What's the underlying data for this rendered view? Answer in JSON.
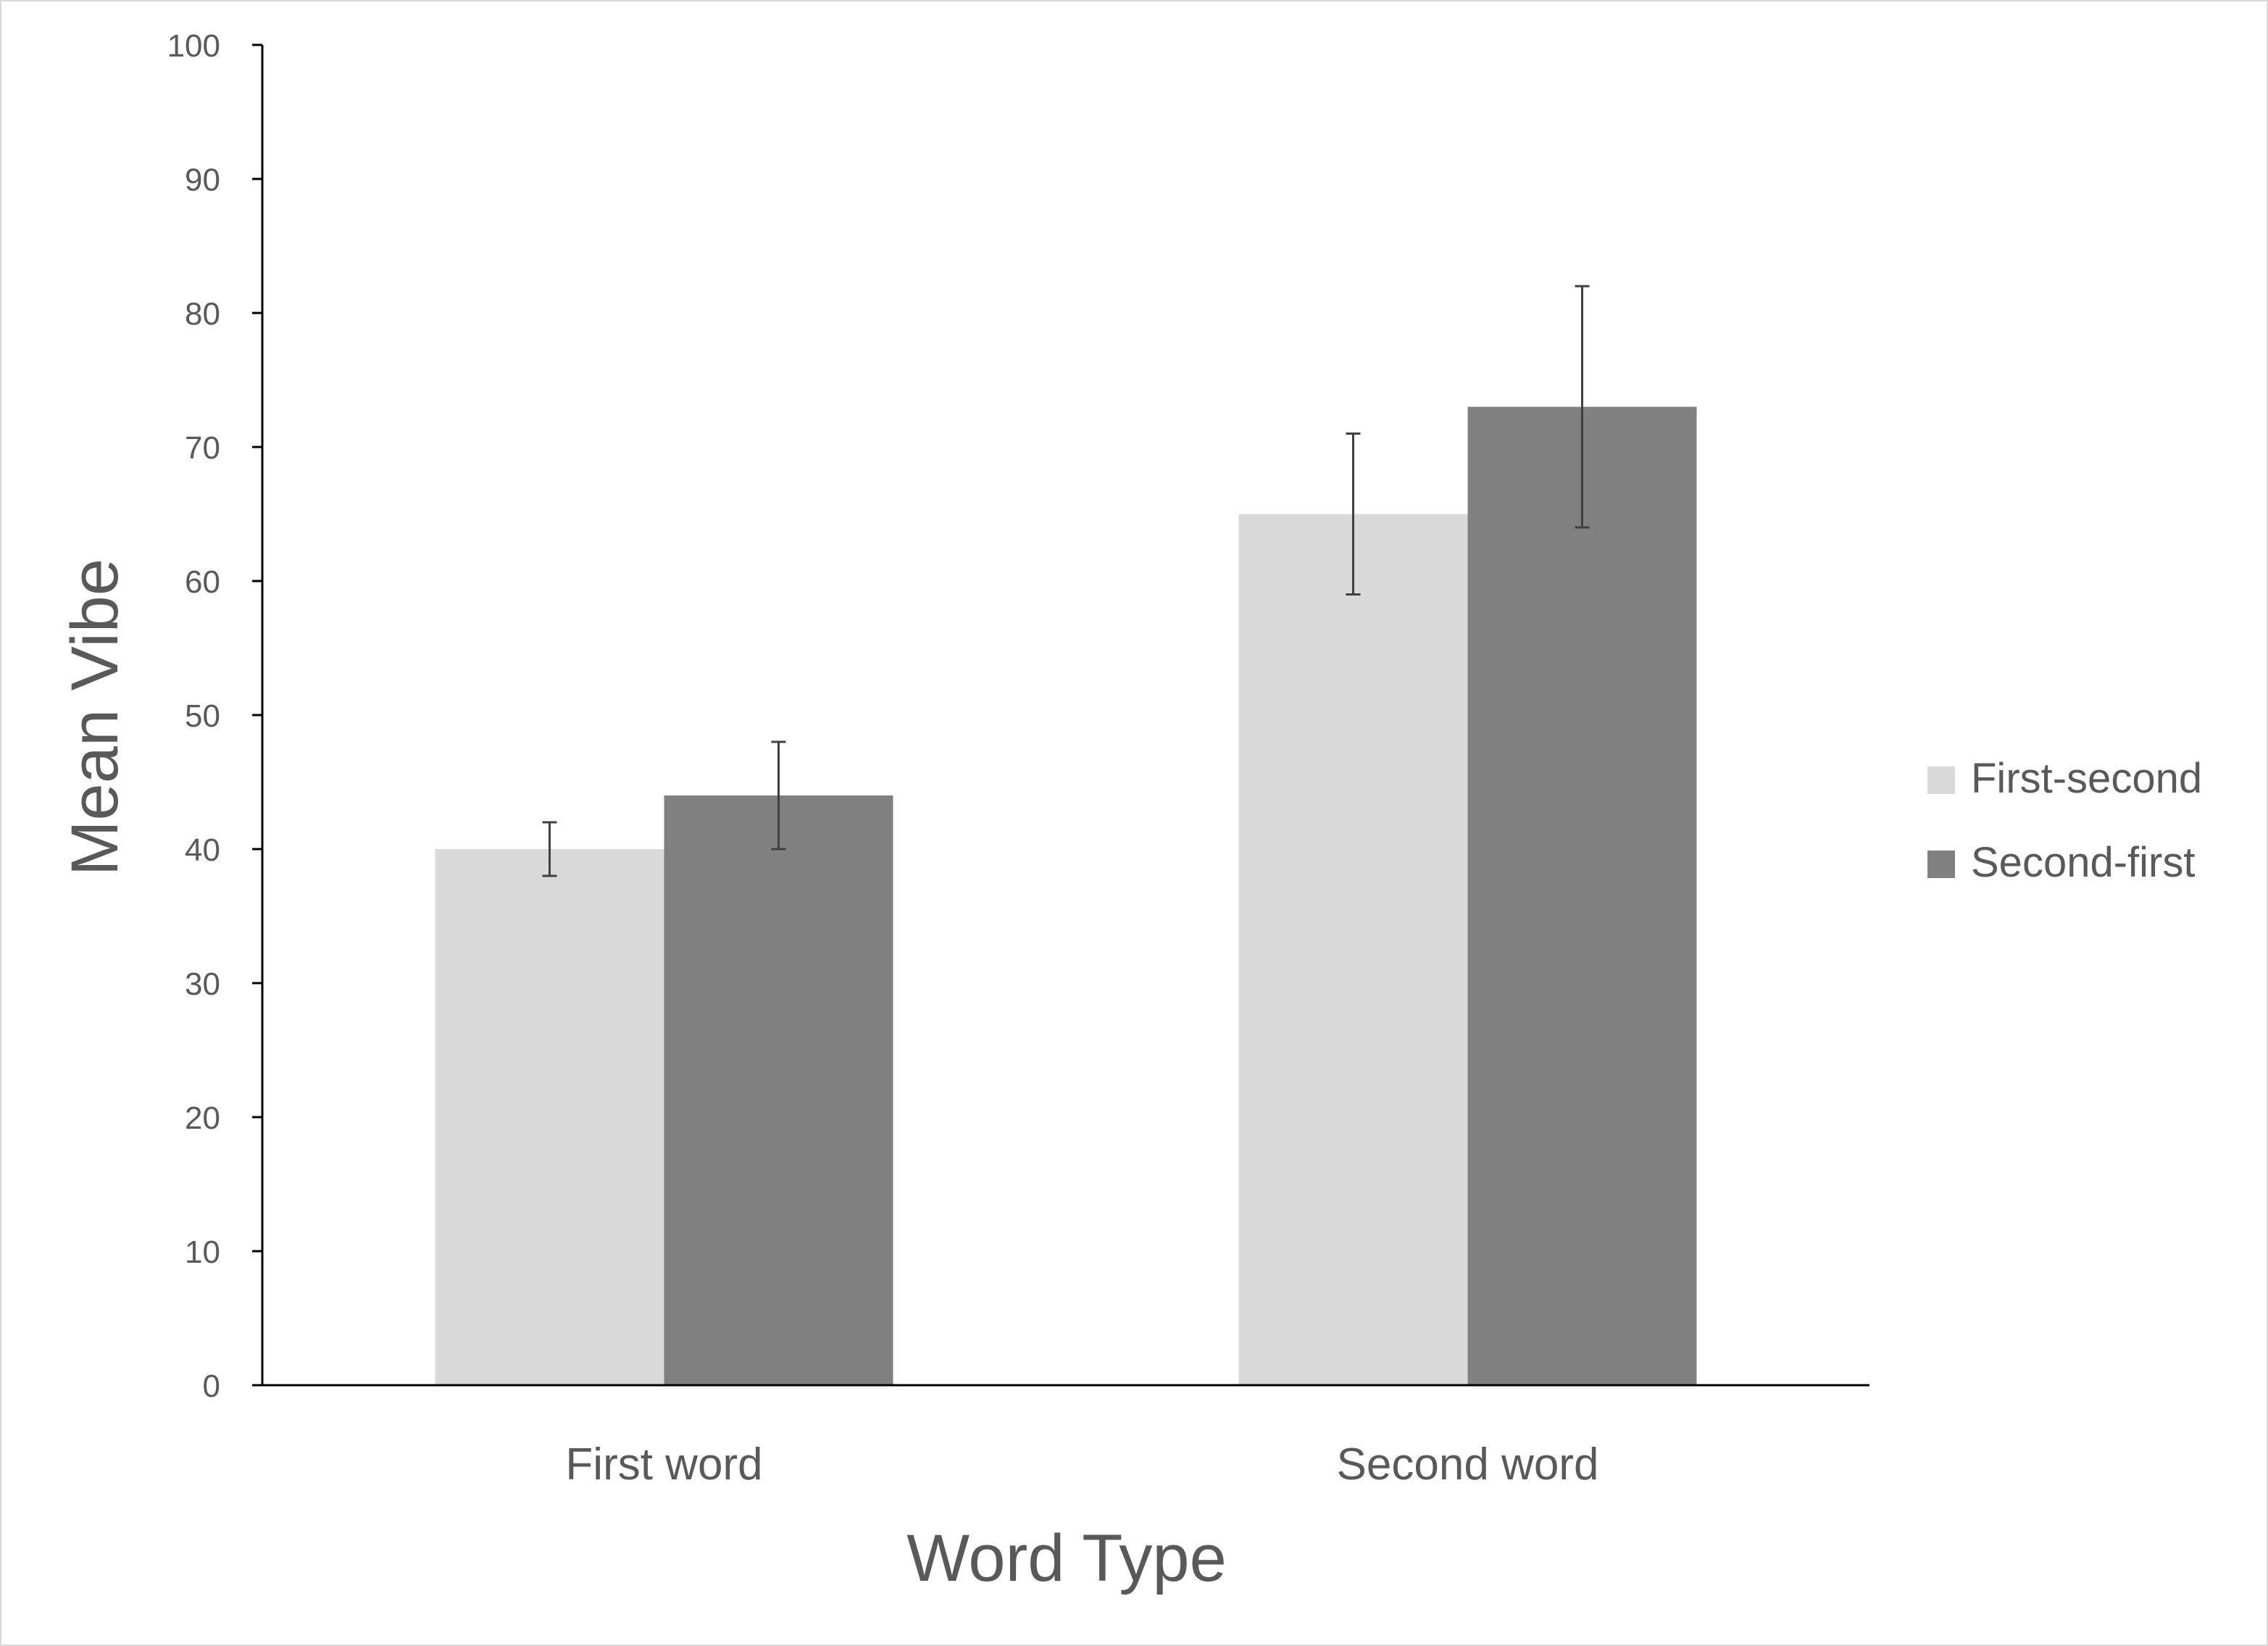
{
  "chart_data": {
    "type": "bar",
    "xlabel": "Word Type",
    "ylabel": "Mean Vibe",
    "ylim": [
      0,
      100
    ],
    "yticks": [
      0,
      10,
      20,
      30,
      40,
      50,
      60,
      70,
      80,
      90,
      100
    ],
    "categories": [
      "First word",
      "Second word"
    ],
    "series": [
      {
        "name": "First-second",
        "values": [
          40,
          65
        ],
        "error_low": [
          38,
          59
        ],
        "error_high": [
          42,
          71
        ],
        "color": "#d9d9d9"
      },
      {
        "name": "Second-first",
        "values": [
          44,
          73
        ],
        "error_low": [
          40,
          64
        ],
        "error_high": [
          48,
          82
        ],
        "color": "#808080"
      }
    ],
    "grid": false,
    "legend_position": "right"
  }
}
